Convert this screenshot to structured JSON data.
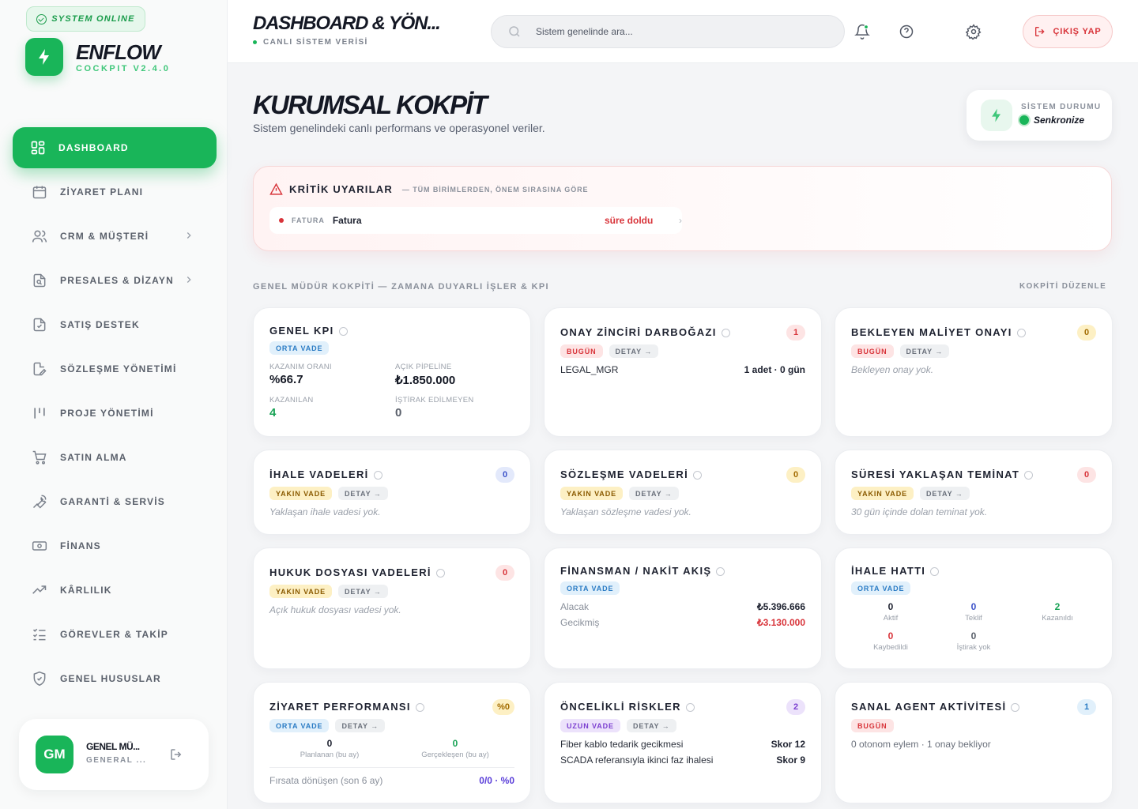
{
  "sidebar": {
    "status": "SYSTEM ONLINE",
    "brand": "ENFLOW",
    "version": "COCKPIT V2.4.0",
    "items": [
      {
        "label": "DASHBOARD"
      },
      {
        "label": "ZİYARET PLANI"
      },
      {
        "label": "CRM & MÜŞTERİ"
      },
      {
        "label": "PRESALES & DİZAYN"
      },
      {
        "label": "SATIŞ DESTEK"
      },
      {
        "label": "SÖZLEŞME YÖNETİMİ"
      },
      {
        "label": "PROJE YÖNETİMİ"
      },
      {
        "label": "SATIN ALMA"
      },
      {
        "label": "GARANTİ & SERVİS"
      },
      {
        "label": "FİNANS"
      },
      {
        "label": "KÂRLILIK"
      },
      {
        "label": "GÖREVLER & TAKİP"
      },
      {
        "label": "GENEL HUSUSLAR"
      }
    ],
    "user": {
      "initials": "GM",
      "name": "GENEL MÜ...",
      "role": "GENERAL ..."
    }
  },
  "topbar": {
    "title": "DASHBOARD & YÖN...",
    "subtitle": "CANLI SİSTEM VERİSİ",
    "search_placeholder": "Sistem genelinde ara...",
    "logout": "ÇIKIŞ YAP"
  },
  "hero": {
    "title": "KURUMSAL KOKPİT",
    "subtitle": "Sistem genelindeki canlı performans ve operasyonel veriler.",
    "status_label": "SİSTEM DURUMU",
    "status_value": "Senkronize"
  },
  "alerts": {
    "title": "KRİTİK UYARILAR",
    "scope": "— TÜM BİRİMLERDEN, ÖNEM SIRASINA GÖRE",
    "items": [
      {
        "tag": "FATURA",
        "name": "Fatura",
        "state": "süre doldu"
      }
    ]
  },
  "section": {
    "label": "GENEL MÜDÜR KOKPİTİ — ZAMANA DUYARLI İŞLER & KPI",
    "link": "KOKPİTİ DÜZENLE"
  },
  "cards": {
    "kpi": {
      "title": "GENEL KPI",
      "badge": "ORTA VADE",
      "win_rate_label": "KAZANIM ORANI",
      "win_rate": "%66.7",
      "pipeline_label": "AÇIK PİPELİNE",
      "pipeline": "₺1.850.000",
      "won_label": "KAZANILAN",
      "won": "4",
      "nobid_label": "İŞTİRAK EDİLMEYEN",
      "nobid": "0"
    },
    "approval": {
      "title": "ONAY ZİNCİRİ DARBOĞAZI",
      "count": "1",
      "badge": "BUGÜN",
      "detail": "DETAY →",
      "row_left": "LEGAL_MGR",
      "row_right": "1 adet · 0 gün"
    },
    "cost": {
      "title": "BEKLEYEN MALİYET ONAYI",
      "count": "0",
      "badge": "BUGÜN",
      "detail": "DETAY →",
      "empty": "Bekleyen onay yok."
    },
    "tender_due": {
      "title": "İHALE VADELERİ",
      "count": "0",
      "badge": "YAKIN VADE",
      "detail": "DETAY →",
      "empty": "Yaklaşan ihale vadesi yok."
    },
    "contract_due": {
      "title": "SÖZLEŞME VADELERİ",
      "count": "0",
      "badge": "YAKIN VADE",
      "detail": "DETAY →",
      "empty": "Yaklaşan sözleşme vadesi yok."
    },
    "guarantee": {
      "title": "SÜRESİ YAKLAŞAN TEMİNAT",
      "count": "0",
      "badge": "YAKIN VADE",
      "detail": "DETAY →",
      "empty": "30 gün içinde dolan teminat yok."
    },
    "legal": {
      "title": "HUKUK DOSYASI VADELERİ",
      "count": "0",
      "badge": "YAKIN VADE",
      "detail": "DETAY →",
      "empty": "Açık hukuk dosyası vadesi yok."
    },
    "finance": {
      "title": "FİNANSMAN / NAKİT AKIŞ",
      "badge": "ORTA VADE",
      "recv_label": "Alacak",
      "recv": "₺5.396.666",
      "late_label": "Gecikmiş",
      "late": "₺3.130.000"
    },
    "pipeline": {
      "title": "İHALE HATTI",
      "badge": "ORTA VADE",
      "stats": [
        {
          "n": "0",
          "l": "Aktif"
        },
        {
          "n": "0",
          "l": "Teklif"
        },
        {
          "n": "2",
          "l": "Kazanıldı"
        },
        {
          "n": "0",
          "l": "Kaybedildi"
        },
        {
          "n": "0",
          "l": "İştirak yok"
        }
      ]
    },
    "visit": {
      "title": "ZİYARET PERFORMANSI",
      "count": "%0",
      "badge": "ORTA VADE",
      "detail": "DETAY →",
      "planned": "0",
      "planned_label": "Planlanan (bu ay)",
      "done": "0",
      "done_label": "Gerçekleşen (bu ay)",
      "conv_label": "Fırsata dönüşen (son 6 ay)",
      "conv": "0/0 · %0"
    },
    "risks": {
      "title": "ÖNCELİKLİ RİSKLER",
      "count": "2",
      "badge": "UZUN VADE",
      "detail": "DETAY →",
      "items": [
        {
          "name": "Fiber kablo tedarik gecikmesi",
          "score": "Skor 12"
        },
        {
          "name": "SCADA referansıyla ikinci faz ihalesi",
          "score": "Skor 9"
        }
      ]
    },
    "agent": {
      "title": "SANAL AGENT AKTİVİTESİ",
      "count": "1",
      "badge": "BUGÜN",
      "text": "0 otonom eylem · 1 onay bekliyor"
    }
  }
}
